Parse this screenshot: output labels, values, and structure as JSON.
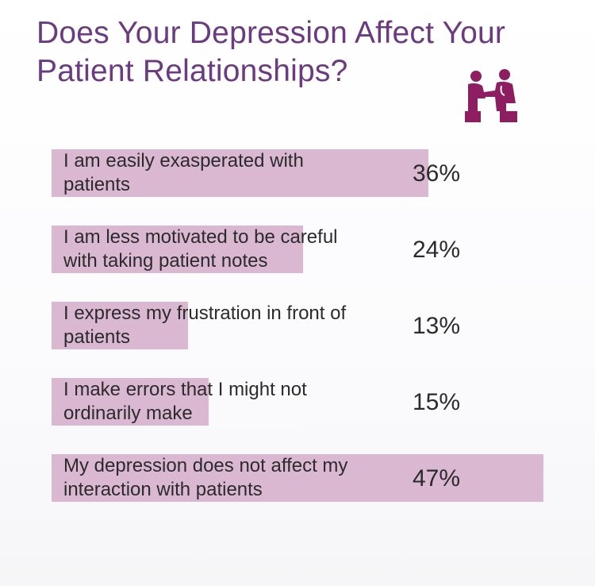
{
  "title": "Does Your Depression Affect Your Patient Relationships?",
  "icon": "doctor-patient-consultation-icon",
  "colors": {
    "title": "#6b3a80",
    "bar": "#dbb8d2",
    "icon": "#8e1e62",
    "text": "#2b2b2b"
  },
  "chart_data": {
    "type": "bar",
    "orientation": "horizontal",
    "title": "Does Your Depression Affect Your Patient Relationships?",
    "categories": [
      "I am easily exasperated with patients",
      "I am less motivated to be careful with taking patient notes",
      "I express my frustration in front of patients",
      "I make errors that I might not ordinarily make",
      "My depression does not affect my interaction with patients"
    ],
    "values": [
      36,
      24,
      13,
      15,
      47
    ],
    "value_labels": [
      "36%",
      "24%",
      "13%",
      "15%",
      "47%"
    ],
    "label_lines": [
      [
        "I am easily exasperated with",
        "patients"
      ],
      [
        "I am less motivated to be careful",
        "with taking patient notes"
      ],
      [
        "I express my frustration in front of",
        "patients"
      ],
      [
        "I make errors that I might not",
        "ordinarily make"
      ],
      [
        "My depression does not affect my",
        "interaction with patients"
      ]
    ],
    "unit": "%",
    "grid": false,
    "legend": "none"
  }
}
